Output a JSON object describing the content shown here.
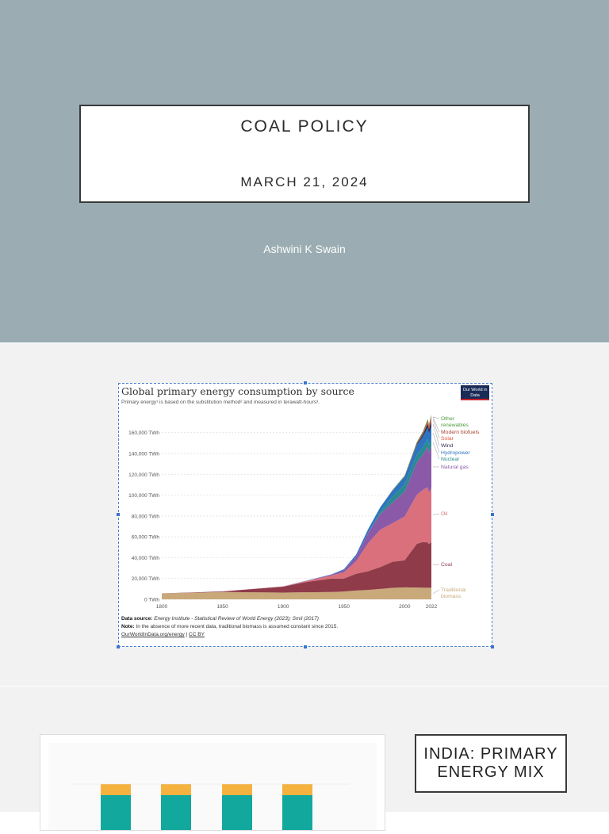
{
  "slide1": {
    "title": "COAL POLICY",
    "date": "MARCH 21, 2024",
    "author": "Ashwini K Swain"
  },
  "slide2": {
    "chart_title": "Global primary energy consumption by source",
    "chart_subtitle": "Primary energy¹ is based on the substitution method² and measured in terawatt-hours³.",
    "logo_text": "Our World in Data",
    "footer": {
      "data_source_label": "Data source:",
      "data_source": "Energy Institute - Statistical Review of World Energy (2023); Smil (2017)",
      "note_label": "Note:",
      "note": "In the absence of more recent data, traditional biomass is assumed constant since 2015.",
      "link": "OurWorldInData.org/energy",
      "license": "CC BY"
    }
  },
  "chart_data": {
    "type": "area",
    "title": "Global primary energy consumption by source",
    "ylabel": "",
    "xlabel": "",
    "x_ticks": [
      "1800",
      "1850",
      "1900",
      "1950",
      "2000",
      "2022"
    ],
    "y_ticks": [
      "0 TWh",
      "20,000 TWh",
      "40,000 TWh",
      "60,000 TWh",
      "80,000 TWh",
      "100,000 TWh",
      "120,000 TWh",
      "140,000 TWh",
      "160,000 TWh"
    ],
    "ylim": [
      0,
      175000
    ],
    "xlim": [
      1800,
      2022
    ],
    "x": [
      1800,
      1850,
      1900,
      1920,
      1940,
      1950,
      1960,
      1970,
      1980,
      1990,
      2000,
      2010,
      2015,
      2019,
      2020,
      2022
    ],
    "series": [
      {
        "name": "Traditional biomass",
        "color": "#c9a97a",
        "values": [
          5600,
          7000,
          6500,
          6800,
          7000,
          7500,
          8500,
          9000,
          10000,
          11000,
          11500,
          11300,
          11100,
          11100,
          11100,
          11100
        ]
      },
      {
        "name": "Coal",
        "color": "#8f3b4a",
        "values": [
          100,
          600,
          5700,
          10000,
          13000,
          12500,
          16000,
          18000,
          21000,
          25000,
          26000,
          42000,
          44000,
          43500,
          42000,
          44000
        ]
      },
      {
        "name": "Oil",
        "color": "#d9707b",
        "values": [
          0,
          0,
          200,
          1000,
          3000,
          6000,
          12000,
          27000,
          36000,
          37000,
          42000,
          47000,
          50000,
          53000,
          49000,
          52000
        ]
      },
      {
        "name": "Natural gas",
        "color": "#8a5aa8",
        "values": [
          0,
          0,
          100,
          300,
          800,
          2000,
          4500,
          10000,
          15000,
          20000,
          24000,
          31000,
          34000,
          39000,
          38500,
          40000
        ]
      },
      {
        "name": "Nuclear",
        "color": "#2a8a8f",
        "values": [
          0,
          0,
          0,
          0,
          0,
          0,
          0,
          300,
          2000,
          5500,
          7000,
          7500,
          7000,
          7300,
          7000,
          7000
        ]
      },
      {
        "name": "Hydropower",
        "color": "#2c74c2",
        "values": [
          0,
          0,
          0,
          100,
          300,
          900,
          1800,
          3200,
          4500,
          5800,
          7300,
          9100,
          10000,
          11000,
          11500,
          11500
        ]
      },
      {
        "name": "Wind",
        "color": "#2d2f57",
        "values": [
          0,
          0,
          0,
          0,
          0,
          0,
          0,
          0,
          0,
          0,
          80,
          900,
          2200,
          3700,
          4200,
          5500
        ]
      },
      {
        "name": "Solar",
        "color": "#e0563d",
        "values": [
          0,
          0,
          0,
          0,
          0,
          0,
          0,
          0,
          0,
          0,
          0,
          100,
          650,
          1800,
          2200,
          3500
        ]
      },
      {
        "name": "Modern biofuels",
        "color": "#a8432f",
        "values": [
          0,
          0,
          0,
          0,
          0,
          0,
          0,
          0,
          0,
          300,
          300,
          1000,
          1100,
          1200,
          1100,
          1200
        ]
      },
      {
        "name": "Other renewables",
        "color": "#4b9a3c",
        "values": [
          0,
          0,
          0,
          0,
          0,
          0,
          0,
          0,
          100,
          400,
          600,
          900,
          1100,
          1300,
          1300,
          1400
        ]
      }
    ],
    "legend_placement": "right, end-of-series labels",
    "grid": true
  },
  "slide3": {
    "heading": "INDIA: PRIMARY ENERGY MIX"
  }
}
